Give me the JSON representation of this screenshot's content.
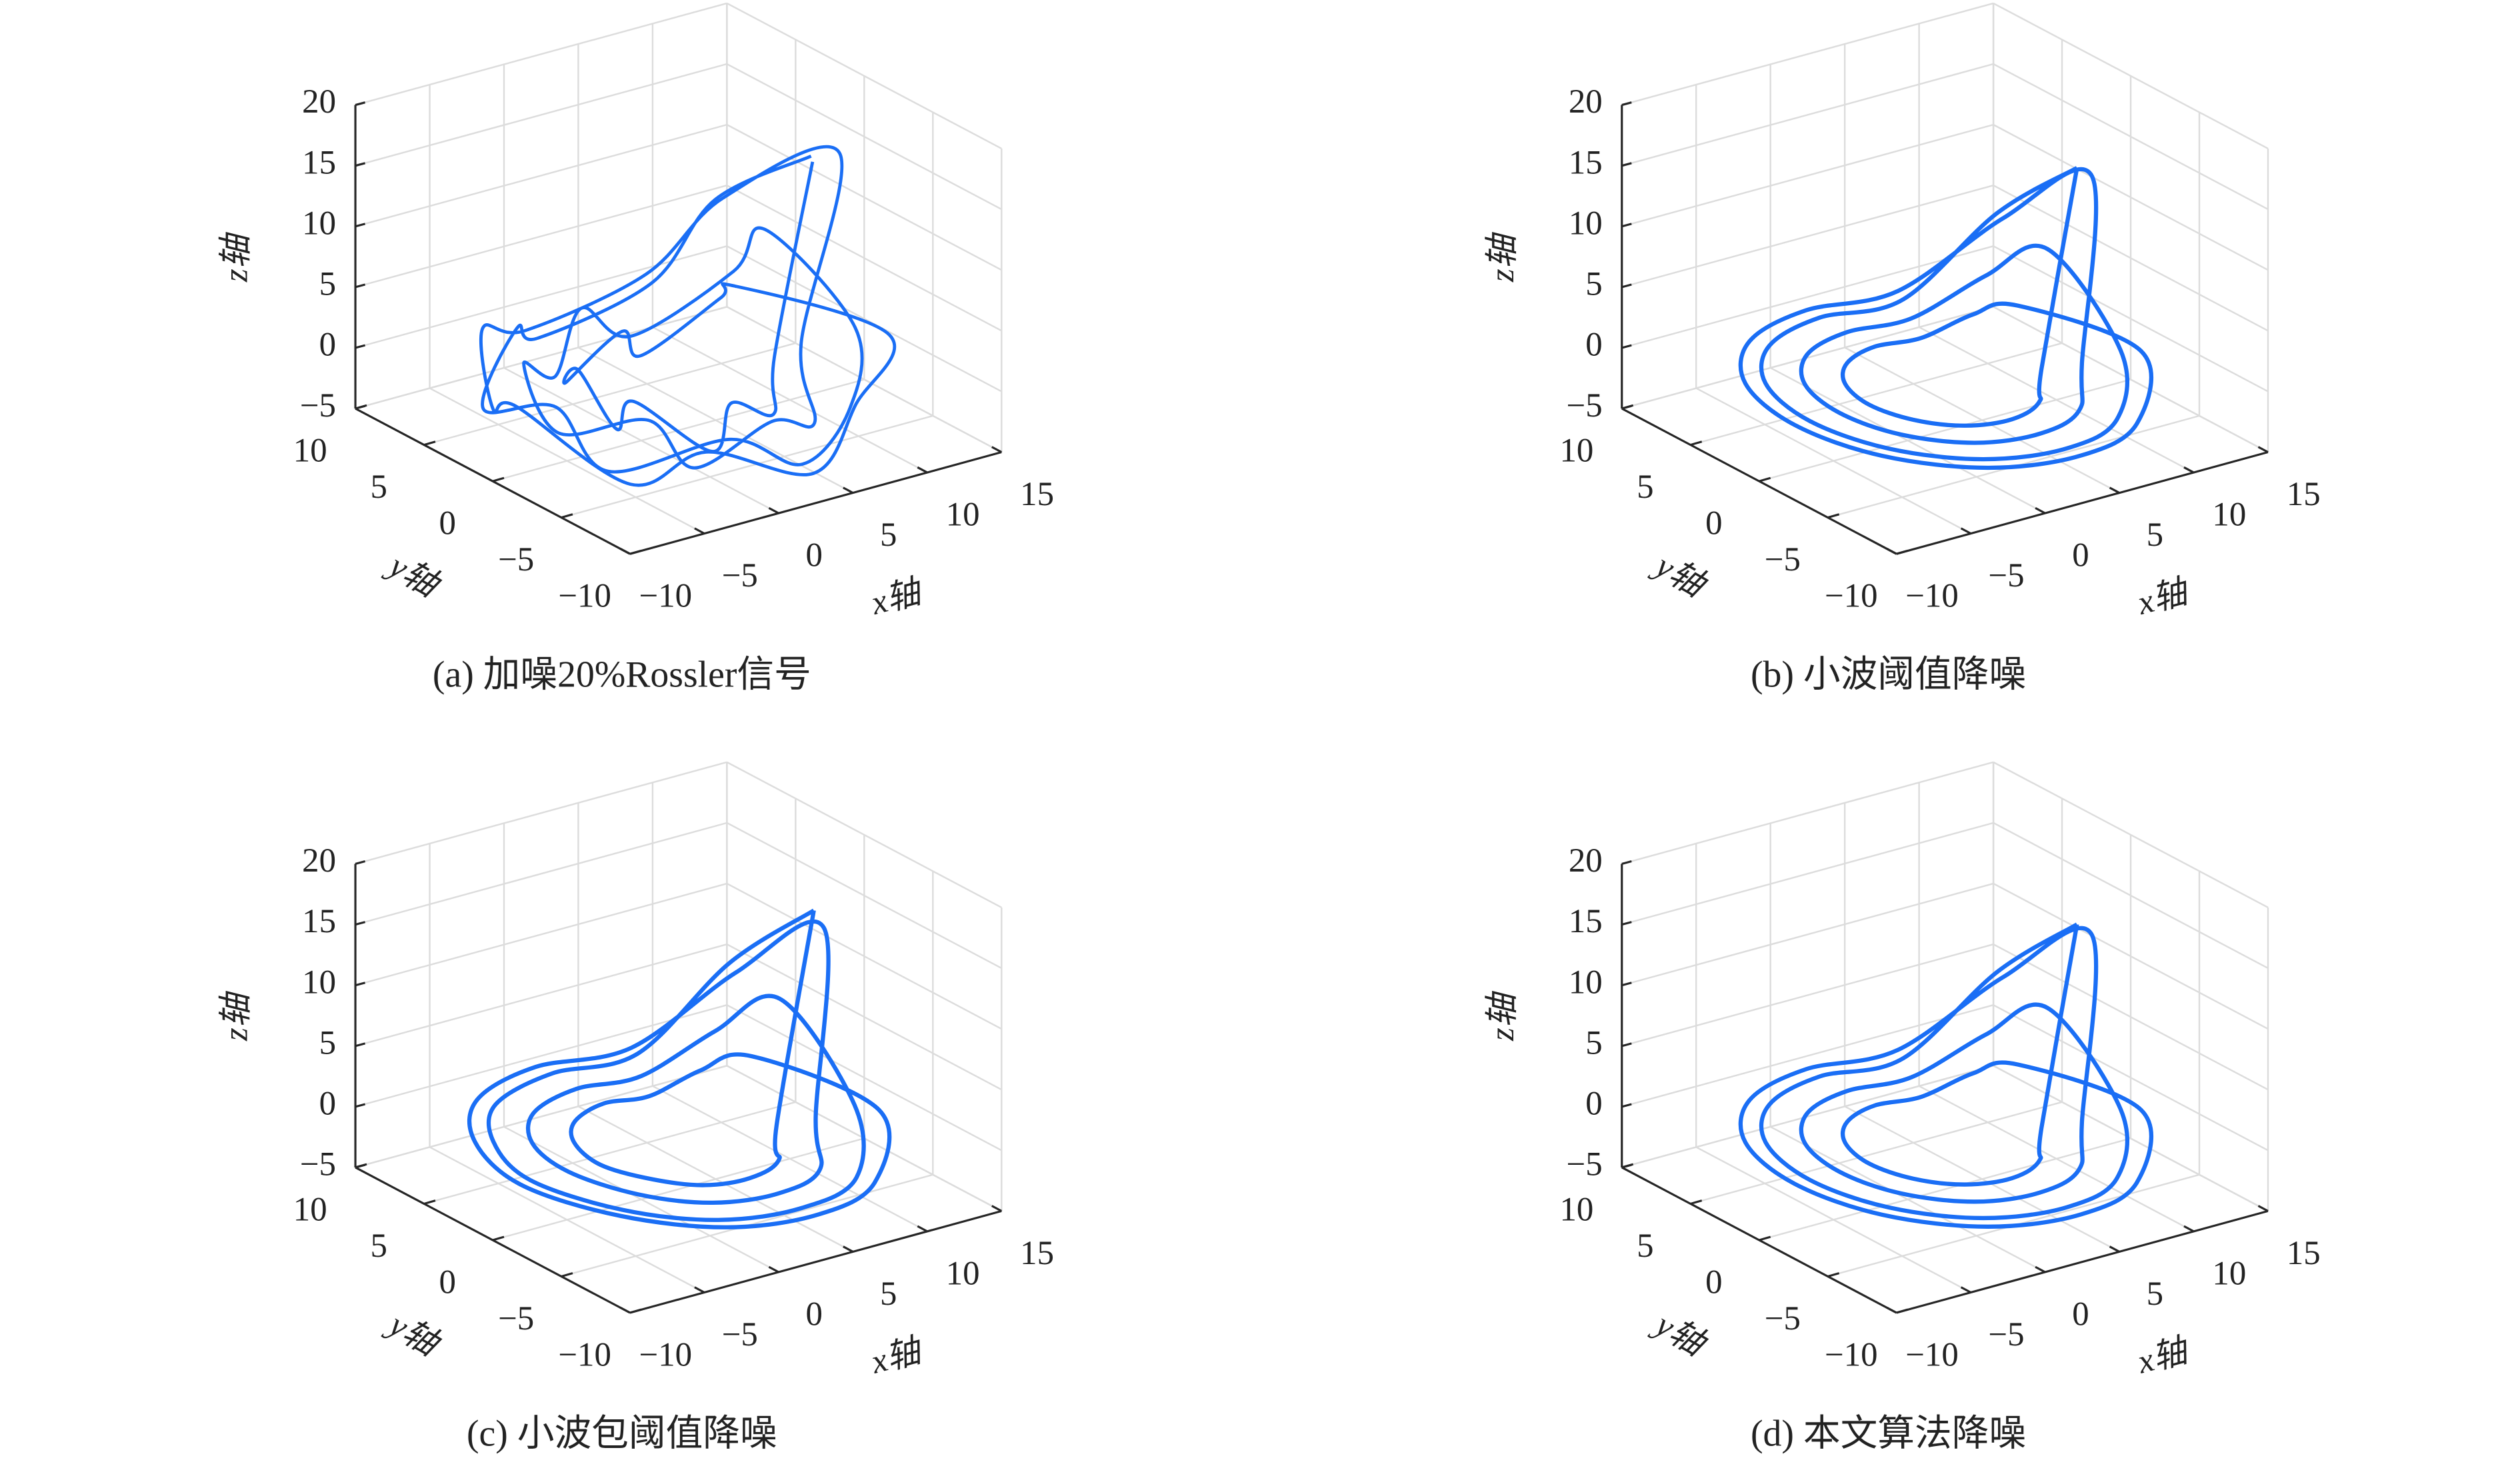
{
  "chart_data": [
    {
      "type": "line3d",
      "caption": "(a) 加噪20%Rossler信号",
      "color": "#1a6ef5",
      "xlabel": "x轴",
      "ylabel": "y轴",
      "zlabel": "z轴",
      "xlim": [
        -10,
        15
      ],
      "ylim": [
        -10,
        10
      ],
      "zlim": [
        -5,
        20
      ],
      "xticks": [
        {
          "value": -10,
          "label": "−10"
        },
        {
          "value": -5,
          "label": "−5"
        },
        0,
        5,
        10,
        15
      ],
      "yticks": [
        {
          "value": -10,
          "label": "−10"
        },
        {
          "value": -5,
          "label": "−5"
        },
        0,
        5,
        10
      ],
      "zticks": [
        {
          "value": -5,
          "label": "−5"
        },
        0,
        5,
        10,
        15,
        20
      ],
      "grid": true,
      "x": [
        10.5,
        8.2,
        6.1,
        0.4,
        -3.0,
        -7.4,
        -7.6,
        -7.3,
        -3.1,
        1.6,
        5.0,
        9.3,
        7.4,
        7.6,
        4.0,
        1.5,
        -2.0,
        -5.6,
        -6.5,
        -4.6,
        -3.0,
        0.5,
        5.1,
        6.6,
        11.5,
        9.2,
        6.5,
        0.5,
        -4.5,
        -7.2,
        -9.4,
        -7.2,
        -4.6,
        1.4,
        5.5,
        10.2,
        5.4,
        5.8,
        3.0,
        1.5,
        -2.0,
        -3.8,
        -3.5,
        -3.8,
        -1.0,
        0.5,
        4.0,
        4.8,
        10.6
      ],
      "y": [
        -1.0,
        3.5,
        5.8,
        8.0,
        5.8,
        3.5,
        -2.0,
        -5.5,
        -9.8,
        -10.0,
        -9.8,
        -5.5,
        -1.0,
        1.5,
        5.1,
        6.0,
        4.1,
        2.5,
        -1.0,
        -5.5,
        -7.1,
        -9.0,
        -7.1,
        -4.5,
        -2.0,
        4.0,
        6.7,
        9.0,
        6.7,
        3.0,
        -1.0,
        -7.0,
        -9.7,
        -11.0,
        -9.7,
        -7.0,
        -1.0,
        0.5,
        3.3,
        3.0,
        3.3,
        0.5,
        -2.0,
        -3.5,
        -6.3,
        -6.0,
        -5.3,
        -4.5,
        -1.0
      ],
      "z": [
        15.5,
        10,
        2.5,
        -1.5,
        1.8,
        -2,
        1.5,
        -1.8,
        2,
        -1.5,
        1.9,
        4.5,
        10.5,
        5.5,
        -0.8,
        1.8,
        -1.5,
        1.7,
        -1.6,
        1.5,
        -2,
        1.8,
        -1,
        3.5,
        16,
        9.5,
        2.5,
        -1.5,
        1.7,
        -1.8,
        1.6,
        -2,
        1.4,
        -1.6,
        2,
        4.5,
        6.5,
        4.5,
        -1,
        1.7,
        -1.5,
        1.8,
        -1.7,
        1.6,
        -1.8,
        1.5,
        -1,
        3,
        15
      ]
    },
    {
      "type": "line3d",
      "caption": "(b) 小波阈值降噪",
      "color": "#1a6ef5",
      "xlabel": "x轴",
      "ylabel": "y轴",
      "zlabel": "z轴",
      "xlim": [
        -10,
        15
      ],
      "ylim": [
        -10,
        10
      ],
      "zlim": [
        -5,
        20
      ],
      "xticks": [
        {
          "value": -10,
          "label": "−10"
        },
        {
          "value": -5,
          "label": "−5"
        },
        0,
        5,
        10,
        15
      ],
      "yticks": [
        {
          "value": -10,
          "label": "−10"
        },
        {
          "value": -5,
          "label": "−5"
        },
        0,
        5,
        10
      ],
      "zticks": [
        {
          "value": -5,
          "label": "−5"
        },
        0,
        5,
        10,
        15,
        20
      ],
      "grid": true,
      "x": [
        10,
        8.8,
        5.5,
        1,
        -3.5,
        -6.8,
        -8,
        -6.8,
        -3.5,
        1,
        5.5,
        8.8,
        8,
        7.1,
        4.5,
        1,
        -2.5,
        -5.1,
        -6,
        -5.1,
        -2.5,
        1,
        4.5,
        7.1,
        11,
        9.7,
        6,
        1,
        -4,
        -7.7,
        -9,
        -7.7,
        -4,
        1,
        6,
        9.7,
        6,
        5.3,
        3.5,
        1,
        -1.5,
        -3.3,
        -4,
        -3.3,
        -1.5,
        1,
        3.5,
        5.3,
        10
      ],
      "y": [
        -1.5,
        3,
        6.3,
        7.5,
        6.3,
        3,
        -1.5,
        -6,
        -9.3,
        -10.5,
        -9.3,
        -6,
        -1.5,
        2,
        4.6,
        5.5,
        4.6,
        2,
        -1.5,
        -5,
        -7.6,
        -8.5,
        -7.6,
        -5,
        -1.5,
        3.5,
        7.2,
        8.5,
        7.2,
        3.5,
        -1.5,
        -6.5,
        -10.2,
        -11.5,
        -10.2,
        -6.5,
        -1.5,
        1,
        2.8,
        3.5,
        2.8,
        1,
        -1.5,
        -4,
        -5.8,
        -6.5,
        -5.8,
        -4,
        -1.5
      ],
      "z": [
        15,
        9,
        1,
        0.3,
        0.2,
        0.2,
        0.2,
        0.2,
        0.2,
        0.3,
        0.5,
        3,
        9,
        5,
        0.8,
        0.3,
        0.2,
        0.2,
        0.2,
        0.2,
        0.2,
        0.3,
        0.5,
        2,
        14,
        8,
        1,
        0.3,
        0.2,
        0.2,
        0.2,
        0.2,
        0.2,
        0.3,
        0.5,
        3,
        5,
        3,
        0.6,
        0.3,
        0.2,
        0.2,
        0.2,
        0.2,
        0.2,
        0.3,
        0.5,
        1.5,
        15
      ]
    },
    {
      "type": "line3d",
      "caption": "(c) 小波包阈值降噪",
      "color": "#1a6ef5",
      "xlabel": "x轴",
      "ylabel": "y轴",
      "zlabel": "z轴",
      "xlim": [
        -10,
        15
      ],
      "ylim": [
        -10,
        10
      ],
      "zlim": [
        -5,
        20
      ],
      "xticks": [
        {
          "value": -10,
          "label": "−10"
        },
        {
          "value": -5,
          "label": "−5"
        },
        0,
        5,
        10,
        15
      ],
      "yticks": [
        {
          "value": -10,
          "label": "−10"
        },
        {
          "value": -5,
          "label": "−5"
        },
        0,
        5,
        10
      ],
      "zticks": [
        {
          "value": -5,
          "label": "−5"
        },
        0,
        5,
        10,
        15,
        20
      ],
      "grid": true,
      "x": [
        10.5,
        9,
        5.8,
        1.2,
        -3.8,
        -7,
        -8.6,
        -7,
        -3.6,
        1,
        5.8,
        9,
        8.2,
        7,
        4.4,
        1,
        -2.8,
        -5.4,
        -6.2,
        -5,
        -2.4,
        1.2,
        4.8,
        7.3,
        11,
        9.8,
        6.2,
        1,
        -4.2,
        -7.8,
        -9.4,
        -7.6,
        -3.8,
        1.2,
        6.2,
        9.9,
        6.2,
        5.1,
        3.3,
        1,
        -1.7,
        -3.5,
        -4.2,
        -3.1,
        -1.3,
        1.2,
        3.8,
        5.5,
        10.5
      ],
      "y": [
        -1.2,
        3.3,
        6.5,
        7.8,
        6.5,
        3.2,
        -1.2,
        -6.2,
        -9.5,
        -10.6,
        -9.4,
        -5.8,
        -1.2,
        2.2,
        4.8,
        5.8,
        4.8,
        2.1,
        -1.4,
        -5.2,
        -7.8,
        -8.7,
        -7.8,
        -4.8,
        -1.4,
        3.7,
        7.4,
        8.8,
        7.4,
        3.7,
        -1.4,
        -6.7,
        -10.4,
        -11.6,
        -10.3,
        -6.6,
        -1.3,
        1.2,
        3,
        3.8,
        3,
        1.1,
        -1.6,
        -4.2,
        -6,
        -6.6,
        -5.9,
        -3.9,
        -1.2
      ],
      "z": [
        16,
        9.5,
        1.2,
        0.3,
        0.2,
        0.2,
        0.2,
        0.2,
        0.2,
        0.3,
        0.5,
        3.2,
        9.5,
        5.2,
        0.8,
        0.3,
        0.2,
        0.2,
        0.2,
        0.2,
        0.2,
        0.3,
        0.5,
        2.2,
        14.5,
        8.2,
        1,
        0.3,
        0.2,
        0.2,
        0.2,
        0.2,
        0.2,
        0.3,
        0.5,
        3,
        5.5,
        3.2,
        0.6,
        0.3,
        0.2,
        0.2,
        0.2,
        0.2,
        0.2,
        0.3,
        0.5,
        1.6,
        16
      ]
    },
    {
      "type": "line3d",
      "caption": "(d) 本文算法降噪",
      "color": "#1a6ef5",
      "xlabel": "x轴",
      "ylabel": "y轴",
      "zlabel": "z轴",
      "xlim": [
        -10,
        15
      ],
      "ylim": [
        -10,
        10
      ],
      "zlim": [
        -5,
        20
      ],
      "xticks": [
        {
          "value": -10,
          "label": "−10"
        },
        {
          "value": -5,
          "label": "−5"
        },
        0,
        5,
        10,
        15
      ],
      "yticks": [
        {
          "value": -10,
          "label": "−10"
        },
        {
          "value": -5,
          "label": "−5"
        },
        0,
        5,
        10
      ],
      "zticks": [
        {
          "value": -5,
          "label": "−5"
        },
        0,
        5,
        10,
        15,
        20
      ],
      "grid": true,
      "x": [
        10,
        8.8,
        5.5,
        1,
        -3.5,
        -6.8,
        -8,
        -6.8,
        -3.5,
        1,
        5.5,
        8.8,
        8,
        7.1,
        4.5,
        1,
        -2.5,
        -5.1,
        -6,
        -5.1,
        -2.5,
        1,
        4.5,
        7.1,
        11,
        9.7,
        6,
        1,
        -4,
        -7.7,
        -9,
        -7.7,
        -4,
        1,
        6,
        9.7,
        6,
        5.3,
        3.5,
        1,
        -1.5,
        -3.3,
        -4,
        -3.3,
        -1.5,
        1,
        3.5,
        5.3,
        10
      ],
      "y": [
        -1.5,
        3,
        6.3,
        7.5,
        6.3,
        3,
        -1.5,
        -6,
        -9.3,
        -10.5,
        -9.3,
        -6,
        -1.5,
        2,
        4.6,
        5.5,
        4.6,
        2,
        -1.5,
        -5,
        -7.6,
        -8.5,
        -7.6,
        -5,
        -1.5,
        3.5,
        7.2,
        8.5,
        7.2,
        3.5,
        -1.5,
        -6.5,
        -10.2,
        -11.5,
        -10.2,
        -6.5,
        -1.5,
        1,
        2.8,
        3.5,
        2.8,
        1,
        -1.5,
        -4,
        -5.8,
        -6.5,
        -5.8,
        -4,
        -1.5
      ],
      "z": [
        15.2,
        9,
        1,
        0.3,
        0.2,
        0.2,
        0.2,
        0.2,
        0.2,
        0.3,
        0.5,
        3,
        9,
        5,
        0.8,
        0.3,
        0.2,
        0.2,
        0.2,
        0.2,
        0.2,
        0.3,
        0.5,
        2,
        14,
        8,
        1,
        0.3,
        0.2,
        0.2,
        0.2,
        0.2,
        0.2,
        0.3,
        0.5,
        3,
        5,
        3,
        0.6,
        0.3,
        0.2,
        0.2,
        0.2,
        0.2,
        0.2,
        0.3,
        0.5,
        1.5,
        15.2
      ]
    }
  ]
}
